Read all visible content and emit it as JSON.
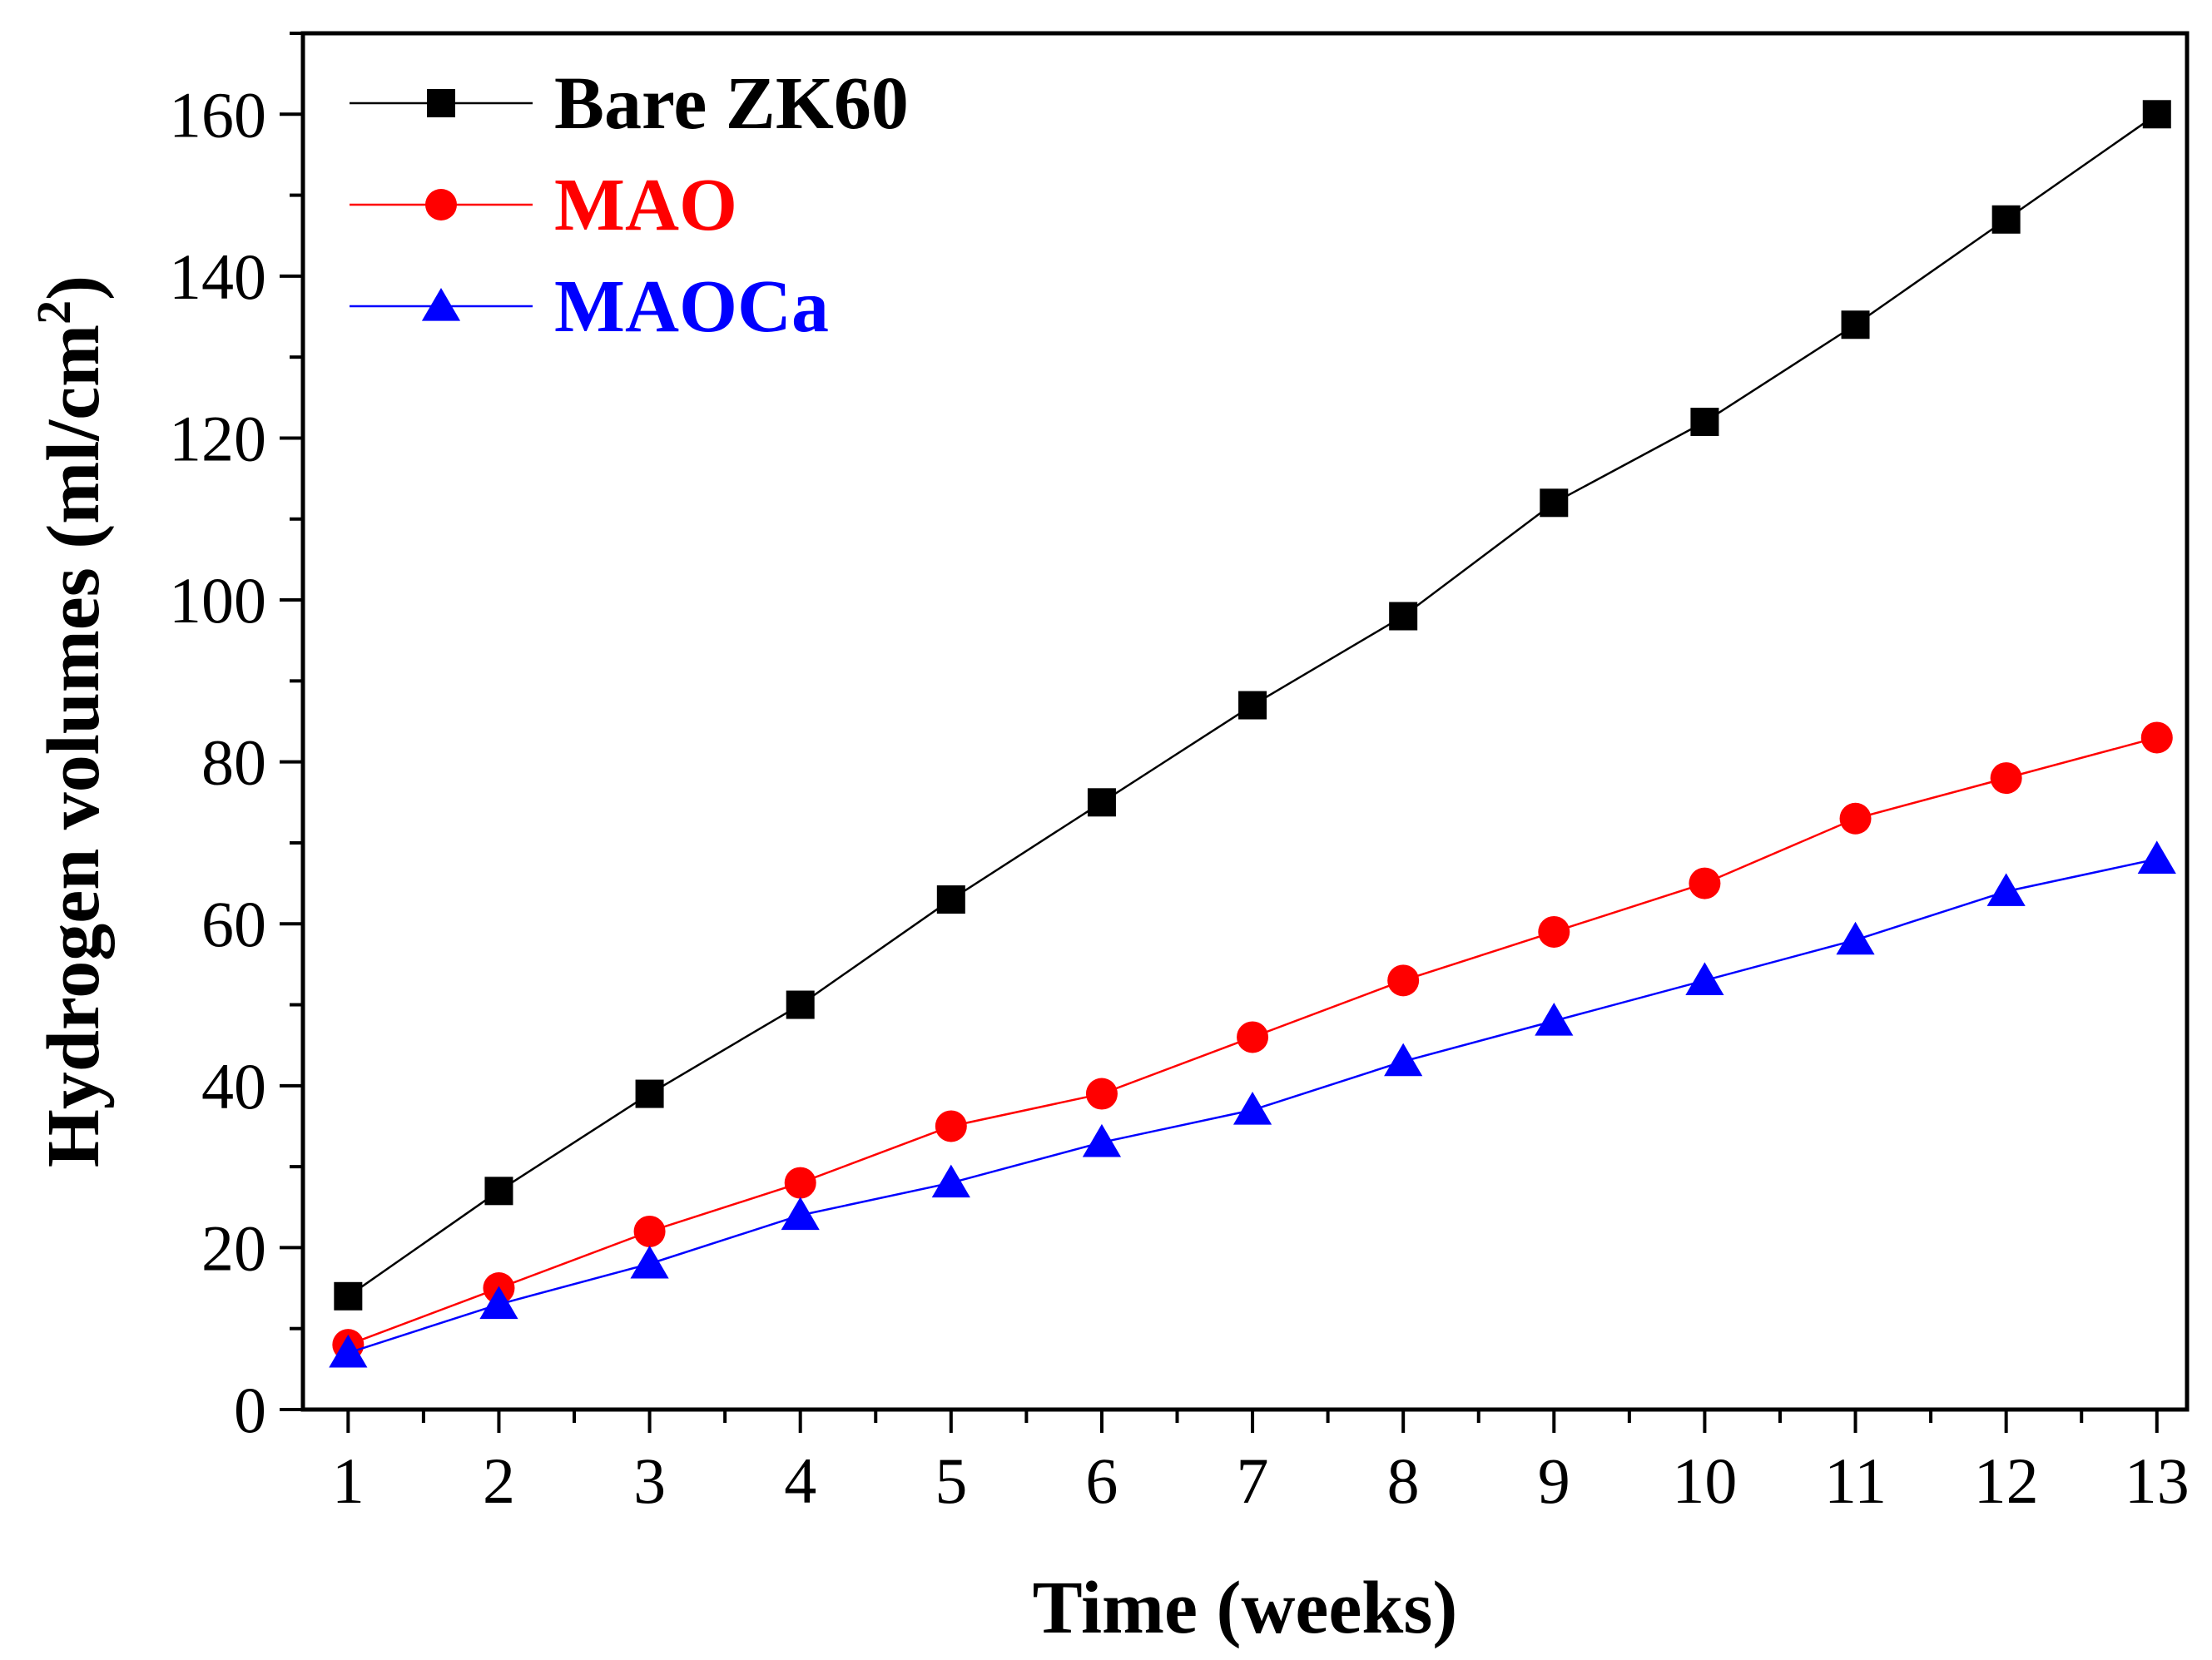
{
  "chart_data": {
    "type": "line",
    "title": "",
    "xlabel": "Time (weeks)",
    "ylabel": {
      "main": "Hydrogen volumes (ml/cm",
      "superscript": "2",
      "close": ")"
    },
    "x": [
      1,
      2,
      3,
      4,
      5,
      6,
      7,
      8,
      9,
      10,
      11,
      12,
      13
    ],
    "xlim": [
      0.7,
      13.2
    ],
    "ylim": [
      0,
      170
    ],
    "xticks": [
      1,
      2,
      3,
      4,
      5,
      6,
      7,
      8,
      9,
      10,
      11,
      12,
      13
    ],
    "yticks": [
      0,
      20,
      40,
      60,
      80,
      100,
      120,
      140,
      160
    ],
    "grid": false,
    "legend_position": "top-left",
    "series": [
      {
        "name": "Bare ZK60",
        "color": "#000000",
        "marker": "square",
        "values": [
          14,
          27,
          39,
          50,
          63,
          75,
          87,
          98,
          112,
          122,
          134,
          147,
          160
        ]
      },
      {
        "name": "MAO",
        "color": "#ff0000",
        "marker": "circle",
        "values": [
          8,
          15,
          22,
          28,
          35,
          39,
          46,
          53,
          59,
          65,
          73,
          78,
          83
        ]
      },
      {
        "name": "MAOCa",
        "color": "#0000ff",
        "marker": "triangle",
        "values": [
          7,
          13,
          18,
          24,
          28,
          33,
          37,
          43,
          48,
          53,
          58,
          64,
          68
        ]
      }
    ]
  }
}
